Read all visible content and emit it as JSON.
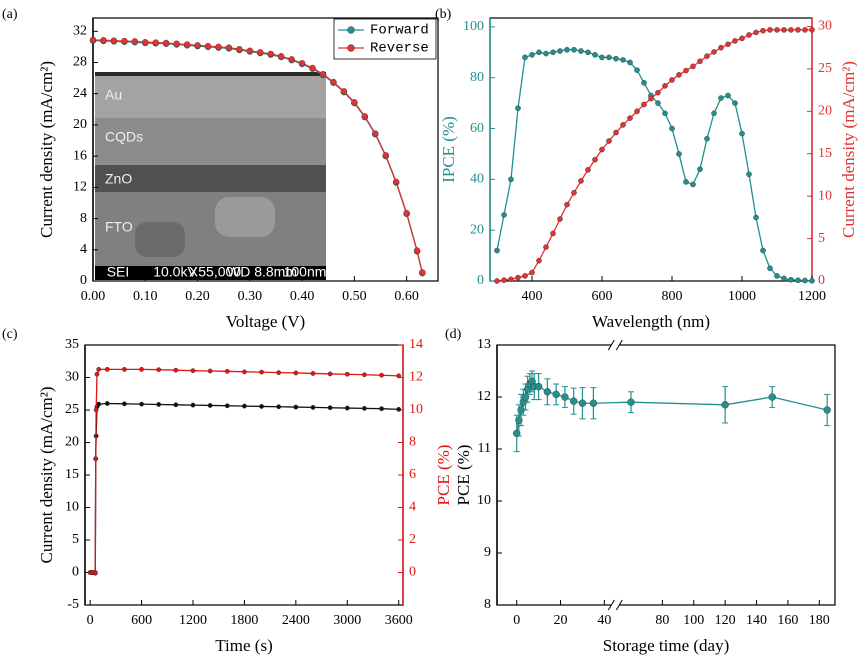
{
  "chart_data": [
    {
      "type": "line",
      "panel_label": "(a)",
      "xlabel": "Voltage (V)",
      "ylabel": "Current density (mA/cm²)",
      "xlim": [
        0,
        0.66
      ],
      "ylim": [
        0,
        33.7
      ],
      "xticks": [
        {
          "value": 0,
          "label": "0.00"
        },
        {
          "value": 0.1,
          "label": "0.10"
        },
        {
          "value": 0.2,
          "label": "0.20"
        },
        {
          "value": 0.3,
          "label": "0.30"
        },
        {
          "value": 0.4,
          "label": "0.40"
        },
        {
          "value": 0.5,
          "label": "0.50"
        },
        {
          "value": 0.6,
          "label": "0.60"
        }
      ],
      "yticks": [
        0,
        4,
        8,
        12,
        16,
        20,
        24,
        28,
        32
      ],
      "legend": "upper right",
      "x": [
        0,
        0.02,
        0.04,
        0.06,
        0.08,
        0.1,
        0.12,
        0.14,
        0.16,
        0.18,
        0.2,
        0.22,
        0.24,
        0.26,
        0.28,
        0.3,
        0.32,
        0.34,
        0.36,
        0.38,
        0.4,
        0.42,
        0.44,
        0.46,
        0.48,
        0.5,
        0.52,
        0.54,
        0.56,
        0.58,
        0.6,
        0.62,
        0.63
      ],
      "series": [
        {
          "name": "Forward",
          "color": "#23908f",
          "values": [
            30.8,
            30.75,
            30.7,
            30.65,
            30.6,
            30.5,
            30.45,
            30.4,
            30.3,
            30.2,
            30.1,
            30.0,
            29.9,
            29.8,
            29.6,
            29.4,
            29.2,
            29.0,
            28.7,
            28.3,
            27.8,
            27.2,
            26.4,
            25.4,
            24.2,
            22.8,
            21.0,
            18.8,
            16.0,
            12.6,
            8.6,
            3.8,
            1.0
          ]
        },
        {
          "name": "Reverse",
          "color": "#e03434",
          "values": [
            30.9,
            30.85,
            30.8,
            30.75,
            30.7,
            30.6,
            30.55,
            30.5,
            30.4,
            30.3,
            30.2,
            30.1,
            30.0,
            29.9,
            29.7,
            29.5,
            29.3,
            29.1,
            28.8,
            28.4,
            27.9,
            27.3,
            26.5,
            25.5,
            24.3,
            22.9,
            21.1,
            18.9,
            16.1,
            12.7,
            8.7,
            3.9,
            1.1
          ]
        }
      ],
      "inset": {
        "layers": [
          "Au",
          "CQDs",
          "ZnO",
          "FTO"
        ],
        "footer": [
          "SEI",
          "10.0kV",
          "X55,000",
          "WD 8.8mm",
          "100nm"
        ]
      }
    },
    {
      "type": "line",
      "panel_label": "(b)",
      "xlabel": "Wavelength (nm)",
      "ylabel": "IPCE (%)",
      "y2label": "Current density (mA/cm²)",
      "xlim": [
        280,
        1200
      ],
      "ylim": [
        0,
        103.5
      ],
      "y2lim": [
        0,
        31
      ],
      "xticks": [
        400,
        600,
        800,
        1000,
        1200
      ],
      "yticks": [
        0,
        20,
        40,
        60,
        80,
        100
      ],
      "y2ticks": [
        0,
        5,
        10,
        15,
        20,
        25,
        30
      ],
      "y_color": "#23908f",
      "y2_color": "#e03434",
      "x": [
        300,
        320,
        340,
        360,
        380,
        400,
        420,
        440,
        460,
        480,
        500,
        520,
        540,
        560,
        580,
        600,
        620,
        640,
        660,
        680,
        700,
        720,
        740,
        760,
        780,
        800,
        820,
        840,
        860,
        880,
        900,
        920,
        940,
        960,
        980,
        1000,
        1020,
        1040,
        1060,
        1080,
        1100,
        1120,
        1140,
        1160,
        1180,
        1200
      ],
      "series": [
        {
          "color": "#23908f",
          "values": [
            12,
            26,
            40,
            68,
            88,
            89,
            90,
            89.5,
            90,
            90.5,
            91,
            91,
            90.5,
            90,
            89,
            88,
            88,
            87.5,
            87,
            86,
            83,
            78,
            73,
            70,
            66,
            60,
            50,
            39,
            38,
            44,
            56,
            66,
            72,
            73,
            70,
            58,
            42,
            25,
            12,
            5,
            2,
            1,
            0.5,
            0.3,
            0.2,
            0.1
          ]
        },
        {
          "color": "#e03434",
          "axis": "y2",
          "values": [
            0,
            0.1,
            0.2,
            0.4,
            0.6,
            1.0,
            2.4,
            4.0,
            5.6,
            7.3,
            9.0,
            10.4,
            11.8,
            13.1,
            14.3,
            15.5,
            16.5,
            17.5,
            18.4,
            19.2,
            20.0,
            20.8,
            21.5,
            22.2,
            23.0,
            23.7,
            24.3,
            24.8,
            25.3,
            25.9,
            26.5,
            27.0,
            27.5,
            27.9,
            28.3,
            28.6,
            29.0,
            29.3,
            29.5,
            29.6,
            29.6,
            29.6,
            29.6,
            29.6,
            29.6,
            29.6
          ]
        }
      ]
    },
    {
      "type": "line",
      "panel_label": "(c)",
      "xlabel": "Time (s)",
      "ylabel": "Current density (mA/cm²)",
      "y2label": "PCE (%)",
      "xlim": [
        -60,
        3650
      ],
      "ylim": [
        -5,
        35
      ],
      "y2lim": [
        -2,
        14
      ],
      "xticks": [
        0,
        600,
        1200,
        1800,
        2400,
        3000,
        3600
      ],
      "yticks": [
        -5,
        0,
        5,
        10,
        15,
        20,
        25,
        30,
        35
      ],
      "y2ticks": [
        0,
        2,
        4,
        6,
        8,
        10,
        12,
        14
      ],
      "y2_color": "#e01515",
      "x": [
        0,
        20,
        40,
        60,
        65,
        70,
        80,
        100,
        200,
        400,
        600,
        800,
        1000,
        1200,
        1400,
        1600,
        1800,
        2000,
        2200,
        2400,
        2600,
        2800,
        3000,
        3200,
        3400,
        3600
      ],
      "series": [
        {
          "color": "#111111",
          "values": [
            0,
            0,
            0,
            -0.1,
            17.5,
            21,
            25.5,
            25.9,
            26.0,
            25.95,
            25.9,
            25.85,
            25.8,
            25.75,
            25.7,
            25.65,
            25.6,
            25.55,
            25.5,
            25.45,
            25.4,
            25.35,
            25.3,
            25.25,
            25.2,
            25.1
          ]
        },
        {
          "color": "#e01515",
          "axis": "y2",
          "values": [
            0,
            0,
            0,
            0,
            7,
            10,
            12.2,
            12.5,
            12.5,
            12.5,
            12.5,
            12.48,
            12.45,
            12.42,
            12.4,
            12.38,
            12.35,
            12.33,
            12.3,
            12.28,
            12.25,
            12.22,
            12.2,
            12.17,
            12.14,
            12.1
          ]
        }
      ]
    },
    {
      "type": "line",
      "panel_label": "(d)",
      "xlabel": "Storage time (day)",
      "ylabel": "PCE (%)",
      "xlim_segments": [
        [
          -9,
          45
        ],
        [
          50,
          190
        ]
      ],
      "ylim": [
        8,
        13
      ],
      "xticks": [
        0,
        20,
        40,
        80,
        100,
        120,
        140,
        160,
        180
      ],
      "yticks": [
        8,
        9,
        10,
        11,
        12,
        13
      ],
      "x": [
        0,
        1,
        2,
        3,
        4,
        5,
        6,
        7,
        8,
        10,
        14,
        18,
        22,
        26,
        30,
        35,
        60,
        120,
        150,
        185
      ],
      "series": [
        {
          "color": "#23908f",
          "values": [
            11.3,
            11.55,
            11.75,
            11.9,
            12.0,
            12.15,
            12.25,
            12.3,
            12.2,
            12.2,
            12.1,
            12.05,
            12.0,
            11.92,
            11.88,
            11.88,
            11.9,
            11.85,
            12.0,
            11.75
          ],
          "errors": [
            0.35,
            0.3,
            0.3,
            0.25,
            0.25,
            0.25,
            0.2,
            0.2,
            0.25,
            0.25,
            0.25,
            0.2,
            0.2,
            0.25,
            0.3,
            0.3,
            0.2,
            0.35,
            0.2,
            0.3
          ]
        }
      ]
    }
  ]
}
